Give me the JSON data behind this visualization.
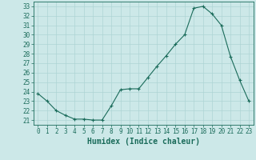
{
  "x": [
    0,
    1,
    2,
    3,
    4,
    5,
    6,
    7,
    8,
    9,
    10,
    11,
    12,
    13,
    14,
    15,
    16,
    17,
    18,
    19,
    20,
    21,
    22,
    23
  ],
  "y": [
    23.8,
    23.0,
    22.0,
    21.5,
    21.1,
    21.1,
    21.0,
    21.0,
    22.5,
    24.2,
    24.3,
    24.3,
    25.5,
    26.7,
    27.8,
    29.0,
    30.0,
    32.8,
    33.0,
    32.2,
    31.0,
    27.7,
    25.2,
    23.0
  ],
  "line_color": "#1a6b5a",
  "marker": "+",
  "marker_size": 3,
  "bg_color": "#cce8e8",
  "grid_color": "#aed4d4",
  "xlabel": "Humidex (Indice chaleur)",
  "xlim": [
    -0.5,
    23.5
  ],
  "ylim": [
    20.5,
    33.5
  ],
  "yticks": [
    21,
    22,
    23,
    24,
    25,
    26,
    27,
    28,
    29,
    30,
    31,
    32,
    33
  ],
  "xticks": [
    0,
    1,
    2,
    3,
    4,
    5,
    6,
    7,
    8,
    9,
    10,
    11,
    12,
    13,
    14,
    15,
    16,
    17,
    18,
    19,
    20,
    21,
    22,
    23
  ],
  "tick_label_color": "#1a6b5a",
  "axis_color": "#1a6b5a",
  "label_fontsize": 7,
  "tick_fontsize": 5.5
}
